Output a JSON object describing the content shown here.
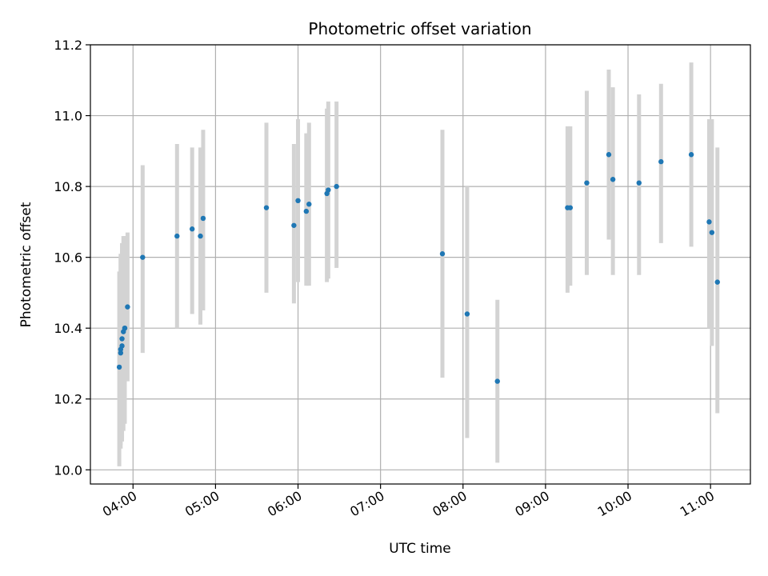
{
  "chart_data": {
    "type": "scatter",
    "title": "Photometric offset variation",
    "xlabel": "UTC time",
    "ylabel": "Photometric offset",
    "xlim": [
      "03:29",
      "11:29"
    ],
    "ylim": [
      9.96,
      11.2
    ],
    "x_ticks": [
      "04:00",
      "05:00",
      "06:00",
      "07:00",
      "08:00",
      "09:00",
      "10:00",
      "11:00"
    ],
    "y_ticks": [
      "10.0",
      "10.2",
      "10.4",
      "10.6",
      "10.8",
      "11.0",
      "11.2"
    ],
    "grid": true,
    "point_color": "#1f77b4",
    "errorbar_color": "#d3d3d3",
    "points": [
      {
        "x": "03:50",
        "y": 10.29,
        "lo": 10.01,
        "hi": 10.56
      },
      {
        "x": "03:51",
        "y": 10.33,
        "lo": 10.06,
        "hi": 10.6
      },
      {
        "x": "03:51",
        "y": 10.34,
        "lo": 10.07,
        "hi": 10.61
      },
      {
        "x": "03:52",
        "y": 10.37,
        "lo": 10.09,
        "hi": 10.64
      },
      {
        "x": "03:52",
        "y": 10.35,
        "lo": 10.08,
        "hi": 10.62
      },
      {
        "x": "03:53",
        "y": 10.39,
        "lo": 10.11,
        "hi": 10.66
      },
      {
        "x": "03:54",
        "y": 10.4,
        "lo": 10.13,
        "hi": 10.66
      },
      {
        "x": "03:54",
        "y": 10.4,
        "lo": 10.15,
        "hi": 10.66
      },
      {
        "x": "03:56",
        "y": 10.46,
        "lo": 10.25,
        "hi": 10.67
      },
      {
        "x": "04:07",
        "y": 10.6,
        "lo": 10.33,
        "hi": 10.86
      },
      {
        "x": "04:32",
        "y": 10.66,
        "lo": 10.4,
        "hi": 10.92
      },
      {
        "x": "04:43",
        "y": 10.68,
        "lo": 10.44,
        "hi": 10.91
      },
      {
        "x": "04:49",
        "y": 10.66,
        "lo": 10.41,
        "hi": 10.91
      },
      {
        "x": "04:51",
        "y": 10.71,
        "lo": 10.45,
        "hi": 10.96
      },
      {
        "x": "05:37",
        "y": 10.74,
        "lo": 10.5,
        "hi": 10.98
      },
      {
        "x": "05:57",
        "y": 10.69,
        "lo": 10.47,
        "hi": 10.92
      },
      {
        "x": "06:00",
        "y": 10.76,
        "lo": 10.53,
        "hi": 10.99
      },
      {
        "x": "06:06",
        "y": 10.73,
        "lo": 10.52,
        "hi": 10.95
      },
      {
        "x": "06:08",
        "y": 10.75,
        "lo": 10.52,
        "hi": 10.98
      },
      {
        "x": "06:21",
        "y": 10.78,
        "lo": 10.53,
        "hi": 11.02
      },
      {
        "x": "06:22",
        "y": 10.79,
        "lo": 10.54,
        "hi": 11.04
      },
      {
        "x": "06:28",
        "y": 10.8,
        "lo": 10.57,
        "hi": 11.04
      },
      {
        "x": "07:45",
        "y": 10.61,
        "lo": 10.26,
        "hi": 10.96
      },
      {
        "x": "08:03",
        "y": 10.44,
        "lo": 10.09,
        "hi": 10.8
      },
      {
        "x": "08:25",
        "y": 10.25,
        "lo": 10.02,
        "hi": 10.48
      },
      {
        "x": "09:16",
        "y": 10.74,
        "lo": 10.5,
        "hi": 10.97
      },
      {
        "x": "09:18",
        "y": 10.74,
        "lo": 10.52,
        "hi": 10.97
      },
      {
        "x": "09:30",
        "y": 10.81,
        "lo": 10.55,
        "hi": 11.07
      },
      {
        "x": "09:46",
        "y": 10.89,
        "lo": 10.65,
        "hi": 11.13
      },
      {
        "x": "09:49",
        "y": 10.82,
        "lo": 10.55,
        "hi": 11.08
      },
      {
        "x": "10:08",
        "y": 10.81,
        "lo": 10.55,
        "hi": 11.06
      },
      {
        "x": "10:24",
        "y": 10.87,
        "lo": 10.64,
        "hi": 11.09
      },
      {
        "x": "10:46",
        "y": 10.89,
        "lo": 10.63,
        "hi": 11.15
      },
      {
        "x": "10:59",
        "y": 10.7,
        "lo": 10.4,
        "hi": 10.99
      },
      {
        "x": "11:01",
        "y": 10.67,
        "lo": 10.35,
        "hi": 10.99
      },
      {
        "x": "11:05",
        "y": 10.53,
        "lo": 10.16,
        "hi": 10.91
      }
    ]
  }
}
